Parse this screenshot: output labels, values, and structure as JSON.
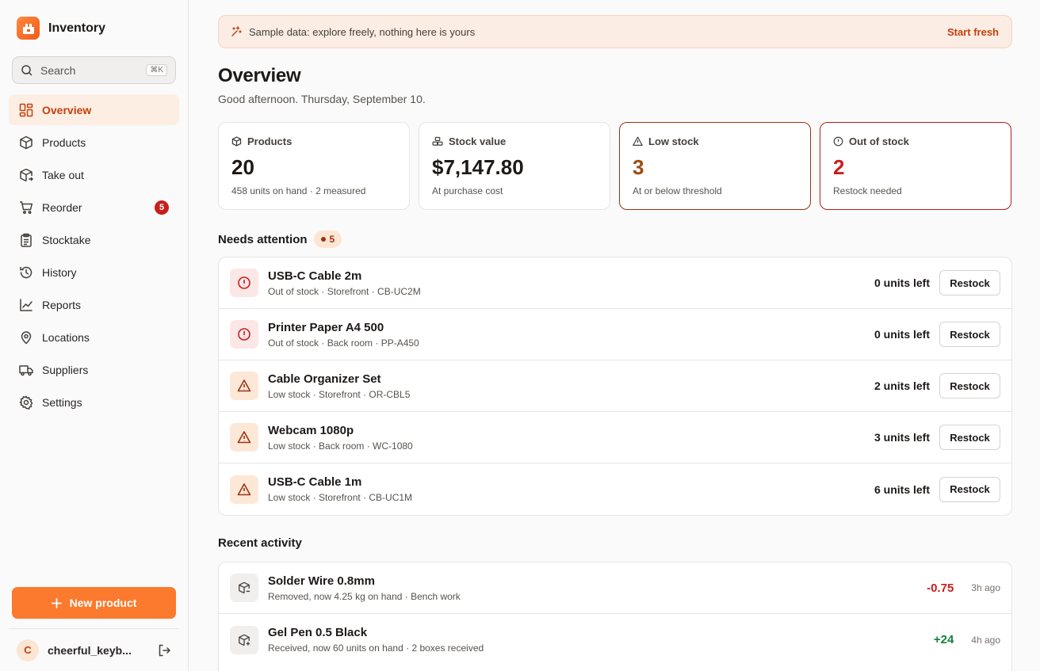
{
  "app": {
    "name": "Inventory"
  },
  "search": {
    "label": "Search",
    "shortcut": "⌘K"
  },
  "nav": [
    {
      "label": "Overview",
      "icon": "grid-icon",
      "active": true
    },
    {
      "label": "Products",
      "icon": "box-icon"
    },
    {
      "label": "Take out",
      "icon": "box-out-icon"
    },
    {
      "label": "Reorder",
      "icon": "cart-icon",
      "badge": "5"
    },
    {
      "label": "Stocktake",
      "icon": "clipboard-icon"
    },
    {
      "label": "History",
      "icon": "history-icon"
    },
    {
      "label": "Reports",
      "icon": "chart-icon"
    },
    {
      "label": "Locations",
      "icon": "pin-icon"
    },
    {
      "label": "Suppliers",
      "icon": "truck-icon"
    },
    {
      "label": "Settings",
      "icon": "gear-icon"
    }
  ],
  "new_product_label": "New product",
  "user": {
    "initial": "C",
    "name": "cheerful_keyb..."
  },
  "banner": {
    "text": "Sample data: explore freely, nothing here is yours",
    "action": "Start fresh"
  },
  "page": {
    "title": "Overview",
    "subtitle": "Good afternoon. Thursday, September 10."
  },
  "stats": {
    "products": {
      "label": "Products",
      "value": "20",
      "sub": "458 units on hand · 2 measured"
    },
    "stock_value": {
      "label": "Stock value",
      "value": "$7,147.80",
      "sub": "At purchase cost"
    },
    "low_stock": {
      "label": "Low stock",
      "value": "3",
      "sub": "At or below threshold"
    },
    "out_of_stock": {
      "label": "Out of stock",
      "value": "2",
      "sub": "Restock needed"
    }
  },
  "attention": {
    "title": "Needs attention",
    "count": "5",
    "action_label": "Restock",
    "items": [
      {
        "name": "USB-C Cable 2m",
        "meta": "Out of stock · Storefront · CB-UC2M",
        "qty": "0 units left"
      },
      {
        "name": "Printer Paper A4 500",
        "meta": "Out of stock · Back room · PP-A450",
        "qty": "0 units left"
      },
      {
        "name": "Cable Organizer Set",
        "meta": "Low stock · Storefront · OR-CBL5",
        "qty": "2 units left"
      },
      {
        "name": "Webcam 1080p",
        "meta": "Low stock · Back room · WC-1080",
        "qty": "3 units left"
      },
      {
        "name": "USB-C Cable 1m",
        "meta": "Low stock · Storefront · CB-UC1M",
        "qty": "6 units left"
      }
    ]
  },
  "activity": {
    "title": "Recent activity",
    "items": [
      {
        "name": "Solder Wire 0.8mm",
        "meta": "Removed, now 4.25 kg on hand · Bench work",
        "delta": "-0.75",
        "ago": "3h ago"
      },
      {
        "name": "Gel Pen 0.5 Black",
        "meta": "Received, now 60 units on hand · 2 boxes received",
        "delta": "+24",
        "ago": "4h ago"
      }
    ]
  }
}
